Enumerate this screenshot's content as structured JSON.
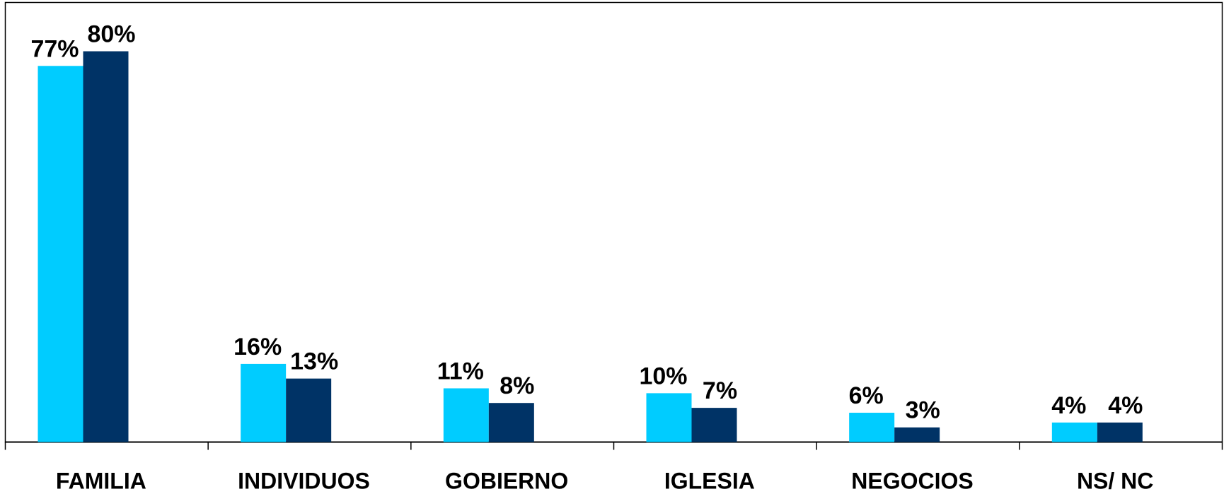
{
  "chart_data": {
    "type": "bar",
    "categories": [
      "FAMILIA",
      "INDIVIDUOS",
      "GOBIERNO",
      "IGLESIA",
      "NEGOCIOS",
      "NS/ NC"
    ],
    "series": [
      {
        "color": "#00ccff",
        "values": [
          77,
          16,
          11,
          10,
          6,
          4
        ],
        "value_labels": [
          "77%",
          "16%",
          "11%",
          "10%",
          "6%",
          "4%"
        ]
      },
      {
        "color": "#003366",
        "values": [
          80,
          13,
          8,
          7,
          3,
          4
        ],
        "value_labels": [
          "80%",
          "13%",
          "8%",
          "7%",
          "3%",
          "4%"
        ]
      }
    ]
  }
}
